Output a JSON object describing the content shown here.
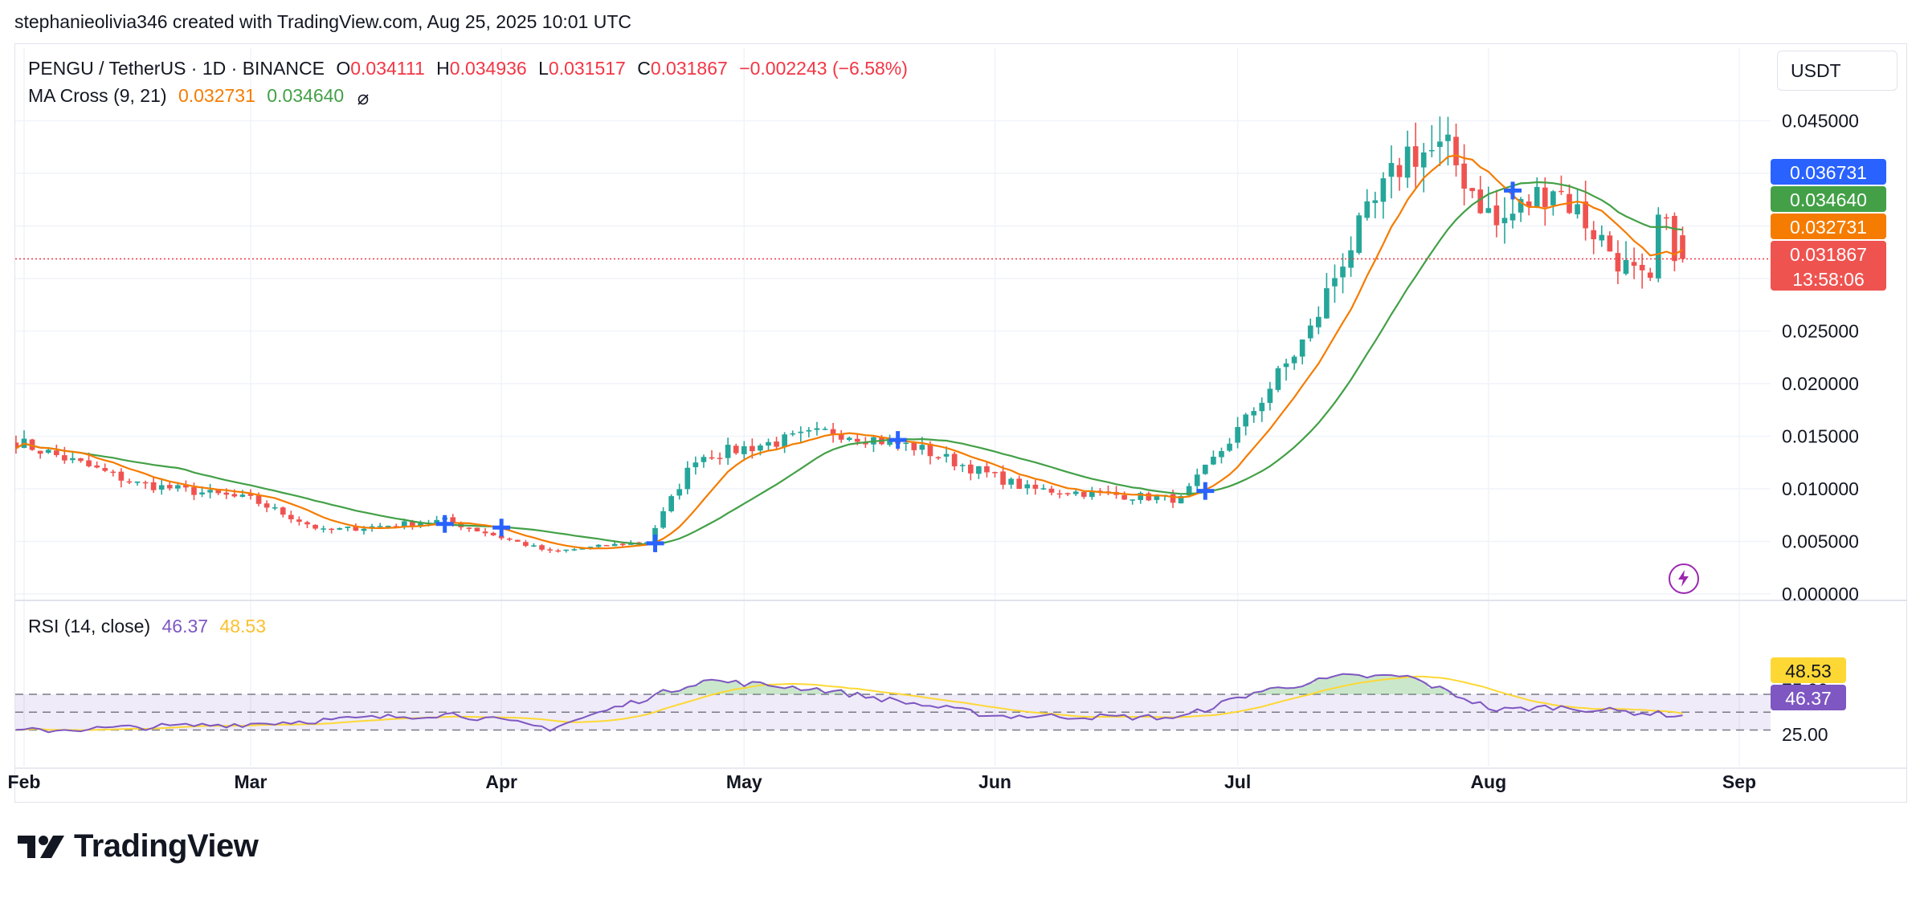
{
  "credit": "stephanieolivia346 created with TradingView.com, Aug 25, 2025 10:01 UTC",
  "legend": {
    "symbol": "PENGU / TetherUS · 1D · BINANCE",
    "o_label": "O",
    "o": "0.034111",
    "h_label": "H",
    "h": "0.034936",
    "l_label": "L",
    "l": "0.031517",
    "c_label": "C",
    "c": "0.031867",
    "change": "−0.002243 (−6.58%)",
    "ma_label": "MA Cross (9, 21)",
    "ma_fast": "0.032731",
    "ma_slow": "0.034640",
    "ma_icon": "eye-off-icon",
    "rsi_label": "RSI (14, close)",
    "rsi": "46.37",
    "rsi_ma": "48.53"
  },
  "currency": "USDT",
  "brand": "TradingView",
  "price_tags": {
    "blue": "0.036731",
    "green": "0.034640",
    "orange": "0.032731",
    "red": "0.031867",
    "countdown": "13:58:06"
  },
  "rsi_tags": {
    "ma": "48.53",
    "rsi": "46.37"
  },
  "colors": {
    "up": "#26a69a",
    "down": "#ef5350",
    "ma_fast": "#f57c00",
    "ma_slow": "#43a047",
    "rsi": "#7e57c2",
    "rsi_ma": "#fdd835",
    "cross": "#2962ff",
    "label_blue": "#2962ff"
  },
  "chart_data": [
    {
      "type": "candlestick",
      "title": "PENGU / TetherUS · 1D · BINANCE",
      "x_ticks": [
        "Feb",
        "Mar",
        "Apr",
        "May",
        "Jun",
        "Jul",
        "Aug",
        "Sep"
      ],
      "y_ticks": [
        "0.045000",
        "0.025000",
        "0.020000",
        "0.015000",
        "0.010000",
        "0.005000",
        "0.000000"
      ],
      "ylim": [
        0,
        0.045
      ],
      "grid": true,
      "series": [
        {
          "name": "MA Cross (9, 21) fast",
          "last": 0.032731
        },
        {
          "name": "MA Cross (9, 21) slow",
          "last": 0.03464
        }
      ],
      "key_points": [
        {
          "date": "2025-01-31",
          "close": 0.0145
        },
        {
          "date": "2025-02-15",
          "close": 0.0105
        },
        {
          "date": "2025-03-01",
          "close": 0.009
        },
        {
          "date": "2025-03-10",
          "close": 0.006
        },
        {
          "date": "2025-03-25",
          "close": 0.007
        },
        {
          "date": "2025-04-07",
          "close": 0.004
        },
        {
          "date": "2025-04-19",
          "close": 0.005
        },
        {
          "date": "2025-04-25",
          "close": 0.013
        },
        {
          "date": "2025-05-12",
          "close": 0.0155
        },
        {
          "date": "2025-05-22",
          "close": 0.014
        },
        {
          "date": "2025-06-05",
          "close": 0.01
        },
        {
          "date": "2025-06-24",
          "close": 0.009
        },
        {
          "date": "2025-07-02",
          "close": 0.0165
        },
        {
          "date": "2025-07-10",
          "close": 0.025
        },
        {
          "date": "2025-07-14",
          "close": 0.032
        },
        {
          "date": "2025-07-22",
          "close": 0.042
        },
        {
          "date": "2025-07-27",
          "close": 0.042
        },
        {
          "date": "2025-08-02",
          "close": 0.035
        },
        {
          "date": "2025-08-09",
          "close": 0.039
        },
        {
          "date": "2025-08-18",
          "close": 0.031
        },
        {
          "date": "2025-08-21",
          "close": 0.029
        },
        {
          "date": "2025-08-22",
          "close": 0.0355
        },
        {
          "date": "2025-08-25",
          "close": 0.031867
        }
      ]
    },
    {
      "type": "line",
      "title": "RSI (14, close)",
      "y_ticks": [
        "75.00",
        "25.00"
      ],
      "ylim": [
        15,
        95
      ],
      "bands": [
        30,
        50,
        70
      ],
      "series": [
        {
          "name": "RSI",
          "last": 46.37
        },
        {
          "name": "RSI MA",
          "last": 48.53
        }
      ],
      "key_points": [
        {
          "date": "2025-02-01",
          "rsi": 29
        },
        {
          "date": "2025-03-01",
          "rsi": 37
        },
        {
          "date": "2025-03-26",
          "rsi": 48
        },
        {
          "date": "2025-04-07",
          "rsi": 32
        },
        {
          "date": "2025-04-26",
          "rsi": 86
        },
        {
          "date": "2025-05-10",
          "rsi": 76
        },
        {
          "date": "2025-06-01",
          "rsi": 46
        },
        {
          "date": "2025-06-24",
          "rsi": 44
        },
        {
          "date": "2025-07-03",
          "rsi": 72
        },
        {
          "date": "2025-07-14",
          "rsi": 90
        },
        {
          "date": "2025-07-22",
          "rsi": 90
        },
        {
          "date": "2025-08-02",
          "rsi": 52
        },
        {
          "date": "2025-08-09",
          "rsi": 56
        },
        {
          "date": "2025-08-25",
          "rsi": 46.37
        }
      ]
    }
  ]
}
